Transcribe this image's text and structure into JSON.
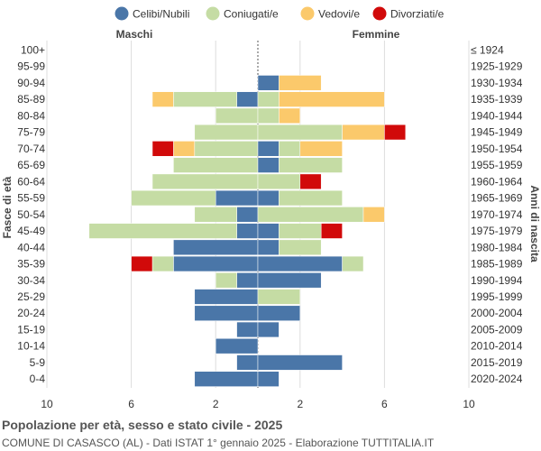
{
  "chart_data": {
    "type": "bar",
    "orientation": "horizontal-population-pyramid",
    "legend": [
      {
        "key": "celibi",
        "label": "Celibi/Nubili",
        "color": "#4a76a8"
      },
      {
        "key": "coniugati",
        "label": "Coniugati/e",
        "color": "#c5dca4"
      },
      {
        "key": "vedovi",
        "label": "Vedovi/e",
        "color": "#fbc96b"
      },
      {
        "key": "divorziati",
        "label": "Divorziati/e",
        "color": "#d10a0a"
      }
    ],
    "legend_position": "top",
    "left_header": "Maschi",
    "right_header": "Femmine",
    "ylabel_left": "Fasce di età",
    "ylabel_right": "Anni di nascita",
    "xlim": [
      -10,
      10
    ],
    "x_ticks": [
      -10,
      -6,
      -2,
      2,
      6,
      10
    ],
    "x_tick_labels": [
      "10",
      "6",
      "2",
      "2",
      "6",
      "10"
    ],
    "grid": true,
    "categories": [
      "100+",
      "95-99",
      "90-94",
      "85-89",
      "80-84",
      "75-79",
      "70-74",
      "65-69",
      "60-64",
      "55-59",
      "50-54",
      "45-49",
      "40-44",
      "35-39",
      "30-34",
      "25-29",
      "20-24",
      "15-19",
      "10-14",
      "5-9",
      "0-4"
    ],
    "birth_years": [
      "≤ 1924",
      "1925-1929",
      "1930-1934",
      "1935-1939",
      "1940-1944",
      "1945-1949",
      "1950-1954",
      "1955-1959",
      "1960-1964",
      "1965-1969",
      "1970-1974",
      "1975-1979",
      "1980-1984",
      "1985-1989",
      "1990-1994",
      "1995-1999",
      "2000-2004",
      "2005-2009",
      "2010-2014",
      "2015-2019",
      "2020-2024"
    ],
    "males": {
      "celibi": [
        0,
        0,
        0,
        1,
        0,
        0,
        0,
        0,
        0,
        2,
        1,
        1,
        4,
        4,
        1,
        3,
        3,
        1,
        2,
        1,
        3
      ],
      "coniugati": [
        0,
        0,
        0,
        3,
        2,
        3,
        3,
        4,
        5,
        4,
        2,
        7,
        0,
        1,
        1,
        0,
        0,
        0,
        0,
        0,
        0
      ],
      "vedovi": [
        0,
        0,
        0,
        1,
        0,
        0,
        1,
        0,
        0,
        0,
        0,
        0,
        0,
        0,
        0,
        0,
        0,
        0,
        0,
        0,
        0
      ],
      "divorziati": [
        0,
        0,
        0,
        0,
        0,
        0,
        1,
        0,
        0,
        0,
        0,
        0,
        0,
        1,
        0,
        0,
        0,
        0,
        0,
        0,
        0
      ]
    },
    "females": {
      "celibi": [
        0,
        0,
        1,
        0,
        0,
        0,
        1,
        1,
        0,
        1,
        0,
        1,
        1,
        4,
        3,
        0,
        2,
        1,
        0,
        4,
        1
      ],
      "coniugati": [
        0,
        0,
        0,
        1,
        1,
        4,
        1,
        3,
        2,
        3,
        5,
        2,
        2,
        1,
        0,
        2,
        0,
        0,
        0,
        0,
        0
      ],
      "vedovi": [
        0,
        0,
        2,
        5,
        1,
        2,
        2,
        0,
        0,
        0,
        1,
        0,
        0,
        0,
        0,
        0,
        0,
        0,
        0,
        0,
        0
      ],
      "divorziati": [
        0,
        0,
        0,
        0,
        0,
        1,
        0,
        0,
        1,
        0,
        0,
        1,
        0,
        0,
        0,
        0,
        0,
        0,
        0,
        0,
        0
      ]
    }
  },
  "footer": {
    "title": "Popolazione per età, sesso e stato civile - 2025",
    "subtitle": "COMUNE DI CASASCO (AL) - Dati ISTAT 1° gennaio 2025 - Elaborazione TUTTITALIA.IT"
  }
}
